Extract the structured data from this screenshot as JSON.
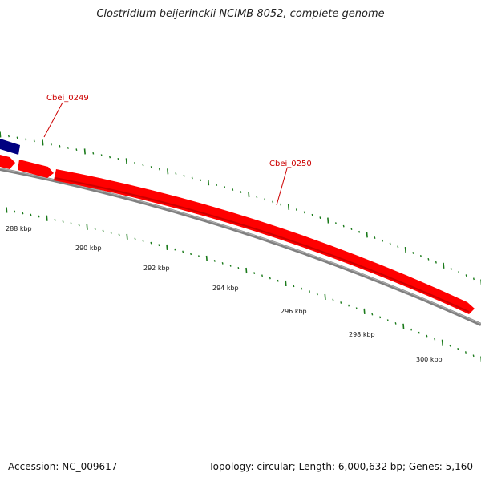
{
  "title": "Clostridium beijerinckii NCIMB 8052, complete genome",
  "footer": {
    "accession": "Accession: NC_009617",
    "summary": "Topology: circular; Length: 6,000,632 bp; Genes: 5,160"
  },
  "colors": {
    "forward_gene": "#ff0000",
    "reverse_gene": "#000080",
    "backbone": "#808080",
    "tick": "#1a7a1a",
    "label": "#cc0000"
  },
  "genes": [
    {
      "name": "Cbei_0249",
      "label": "Cbei_0249"
    },
    {
      "name": "Cbei_0250",
      "label": "Cbei_0250"
    }
  ],
  "scale_labels": [
    "288 kbp",
    "290 kbp",
    "292 kbp",
    "294 kbp",
    "296 kbp",
    "298 kbp",
    "300 kbp"
  ]
}
